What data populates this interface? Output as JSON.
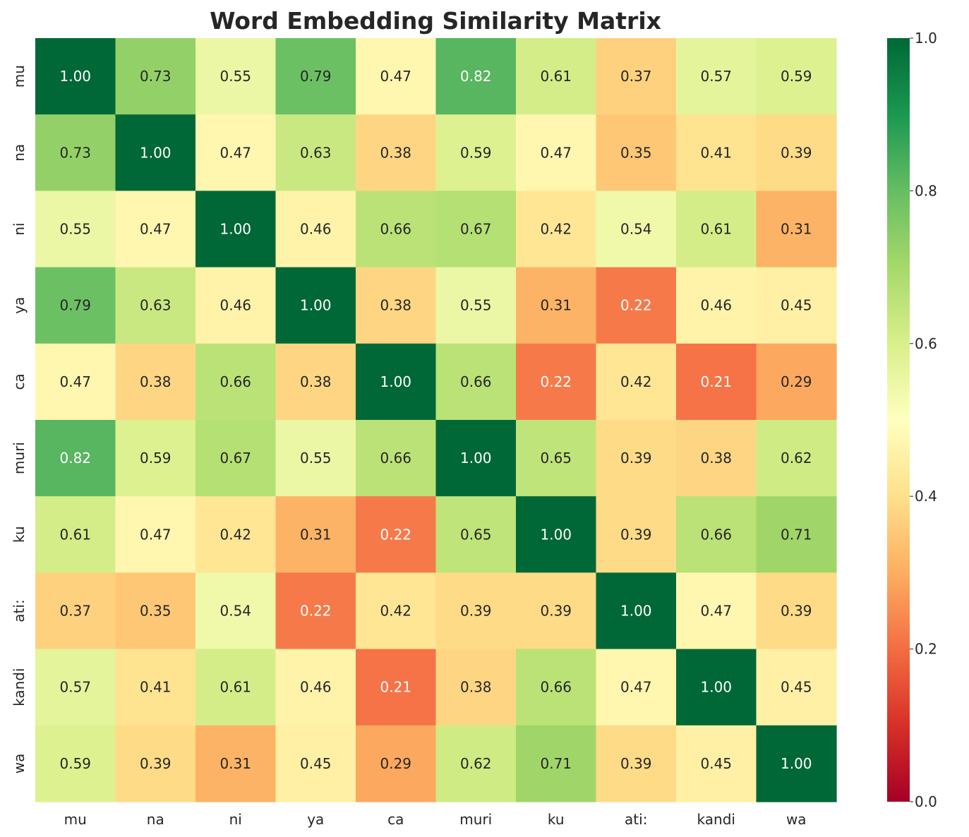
{
  "chart_data": {
    "type": "heatmap",
    "title": "Word Embedding Similarity Matrix",
    "xlabel": "",
    "ylabel": "",
    "x_categories": [
      "mu",
      "na",
      "ni",
      "ya",
      "ca",
      "muri",
      "ku",
      "ati:",
      "kandi",
      "wa"
    ],
    "y_categories": [
      "mu",
      "na",
      "ni",
      "ya",
      "ca",
      "muri",
      "ku",
      "ati:",
      "kandi",
      "wa"
    ],
    "values": [
      [
        1.0,
        0.73,
        0.55,
        0.79,
        0.47,
        0.82,
        0.61,
        0.37,
        0.57,
        0.59
      ],
      [
        0.73,
        1.0,
        0.47,
        0.63,
        0.38,
        0.59,
        0.47,
        0.35,
        0.41,
        0.39
      ],
      [
        0.55,
        0.47,
        1.0,
        0.46,
        0.66,
        0.67,
        0.42,
        0.54,
        0.61,
        0.31
      ],
      [
        0.79,
        0.63,
        0.46,
        1.0,
        0.38,
        0.55,
        0.31,
        0.22,
        0.46,
        0.45
      ],
      [
        0.47,
        0.38,
        0.66,
        0.38,
        1.0,
        0.66,
        0.22,
        0.42,
        0.21,
        0.29
      ],
      [
        0.82,
        0.59,
        0.67,
        0.55,
        0.66,
        1.0,
        0.65,
        0.39,
        0.38,
        0.62
      ],
      [
        0.61,
        0.47,
        0.42,
        0.31,
        0.22,
        0.65,
        1.0,
        0.39,
        0.66,
        0.71
      ],
      [
        0.37,
        0.35,
        0.54,
        0.22,
        0.42,
        0.39,
        0.39,
        1.0,
        0.47,
        0.39
      ],
      [
        0.57,
        0.41,
        0.61,
        0.46,
        0.21,
        0.38,
        0.66,
        0.47,
        1.0,
        0.45
      ],
      [
        0.59,
        0.39,
        0.31,
        0.45,
        0.29,
        0.62,
        0.71,
        0.39,
        0.45,
        1.0
      ]
    ],
    "value_format": "0.00",
    "colormap": "RdYlGn",
    "vmin": 0.0,
    "vmax": 1.0,
    "colorbar_ticks": [
      "0.0",
      "0.2",
      "0.4",
      "0.6",
      "0.8",
      "1.0"
    ],
    "colorbar_tick_values": [
      0.0,
      0.2,
      0.4,
      0.6,
      0.8,
      1.0
    ],
    "colormap_stops": [
      {
        "v": 0.0,
        "color": "#a50026"
      },
      {
        "v": 0.1,
        "color": "#d73027"
      },
      {
        "v": 0.2,
        "color": "#f46d43"
      },
      {
        "v": 0.3,
        "color": "#fdae61"
      },
      {
        "v": 0.4,
        "color": "#fee08b"
      },
      {
        "v": 0.5,
        "color": "#ffffbf"
      },
      {
        "v": 0.6,
        "color": "#d9ef8b"
      },
      {
        "v": 0.7,
        "color": "#a6d96a"
      },
      {
        "v": 0.8,
        "color": "#66bd63"
      },
      {
        "v": 0.9,
        "color": "#1a9850"
      },
      {
        "v": 1.0,
        "color": "#006837"
      }
    ],
    "grid": false,
    "colorbar_position": "right"
  }
}
